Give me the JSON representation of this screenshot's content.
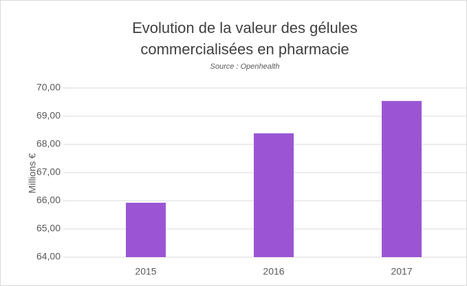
{
  "chart_data": {
    "type": "bar",
    "title": [
      "Evolution de la valeur des gélules",
      "commercialisées en pharmacie"
    ],
    "subtitle": "Source : Openhealth",
    "y_label": "Millions €",
    "categories": [
      "2015",
      "2016",
      "2017"
    ],
    "values": [
      65.93,
      68.39,
      69.54
    ],
    "color": "#9b55d4",
    "ylim": [
      64,
      70
    ],
    "yticks": [
      {
        "value": 64,
        "label": "64,00"
      },
      {
        "value": 65,
        "label": "65,00"
      },
      {
        "value": 66,
        "label": "66,00"
      },
      {
        "value": 67,
        "label": "67,00"
      },
      {
        "value": 68,
        "label": "68,00"
      },
      {
        "value": 69,
        "label": "69,00"
      },
      {
        "value": 70,
        "label": "70,00"
      }
    ],
    "grid": true
  }
}
